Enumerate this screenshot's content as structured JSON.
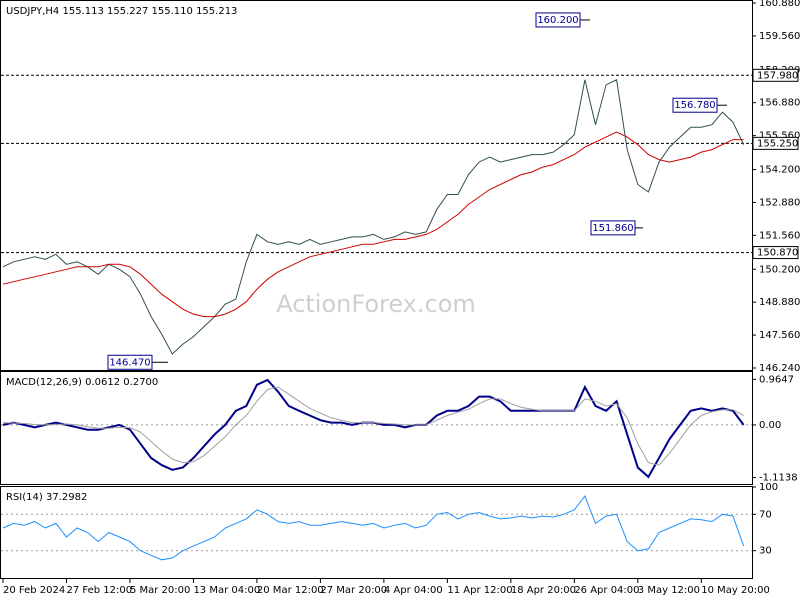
{
  "chart_data": [
    {
      "type": "line",
      "title": "USDJPY,H4 155.113 155.227 155.110 155.213",
      "watermark": "ActionForex.com",
      "categories": [
        "20 Feb 2024",
        null,
        null,
        null,
        null,
        null,
        "27 Feb 12:00",
        null,
        null,
        null,
        null,
        null,
        "5 Mar 20:00",
        null,
        null,
        null,
        null,
        null,
        "13 Mar 04:00",
        null,
        null,
        null,
        null,
        null,
        "20 Mar 12:00",
        null,
        null,
        null,
        null,
        null,
        "27 Mar 20:00",
        null,
        null,
        null,
        null,
        null,
        "4 Apr 04:00",
        null,
        null,
        null,
        null,
        null,
        "11 Apr 12:00",
        null,
        null,
        null,
        null,
        null,
        "18 Apr 20:00",
        null,
        null,
        null,
        null,
        null,
        "26 Apr 04:00",
        null,
        null,
        null,
        null,
        null,
        "3 May 12:00",
        null,
        null,
        null,
        null,
        null,
        "10 May 20:00",
        null,
        null,
        null,
        null
      ],
      "series": [
        {
          "color": "#2f4f4f",
          "values": [
            150.3,
            150.5,
            150.6,
            150.7,
            150.6,
            150.8,
            150.4,
            150.5,
            150.3,
            150.0,
            150.4,
            150.2,
            149.9,
            149.2,
            148.3,
            147.6,
            146.8,
            147.2,
            147.5,
            147.9,
            148.3,
            148.8,
            149.0,
            150.5,
            151.6,
            151.3,
            151.2,
            151.3,
            151.2,
            151.4,
            151.2,
            151.3,
            151.4,
            151.5,
            151.5,
            151.6,
            151.4,
            151.5,
            151.7,
            151.6,
            151.7,
            152.6,
            153.2,
            153.2,
            154.0,
            154.5,
            154.7,
            154.5,
            154.6,
            154.7,
            154.8,
            154.8,
            154.9,
            155.2,
            155.6,
            157.8,
            156.0,
            157.6,
            157.8,
            155.0,
            153.6,
            153.3,
            154.5,
            155.1,
            155.5,
            155.9,
            155.9,
            156.0,
            156.5,
            156.1,
            155.2
          ]
        },
        {
          "color": "#d00000",
          "values": [
            149.6,
            149.7,
            149.8,
            149.9,
            150.0,
            150.1,
            150.2,
            150.3,
            150.3,
            150.3,
            150.4,
            150.4,
            150.3,
            150.0,
            149.6,
            149.2,
            148.9,
            148.6,
            148.4,
            148.3,
            148.3,
            148.4,
            148.6,
            148.9,
            149.4,
            149.8,
            150.1,
            150.3,
            150.5,
            150.7,
            150.8,
            150.9,
            151.0,
            151.1,
            151.2,
            151.2,
            151.3,
            151.4,
            151.4,
            151.5,
            151.6,
            151.8,
            152.1,
            152.4,
            152.8,
            153.1,
            153.4,
            153.6,
            153.8,
            154.0,
            154.1,
            154.3,
            154.4,
            154.6,
            154.8,
            155.1,
            155.3,
            155.5,
            155.7,
            155.5,
            155.2,
            154.8,
            154.6,
            154.5,
            154.6,
            154.7,
            154.9,
            155.0,
            155.2,
            155.4,
            155.4
          ]
        }
      ],
      "ylim": [
        146.24,
        160.88
      ],
      "yticks": [
        {
          "value": 160.88,
          "label": "160.880"
        },
        {
          "value": 159.56,
          "label": "159.560"
        },
        {
          "value": 158.2,
          "label": "158.200"
        },
        {
          "value": 156.88,
          "label": "156.880"
        },
        {
          "value": 155.56,
          "label": "155.560"
        },
        {
          "value": 154.2,
          "label": "154.200"
        },
        {
          "value": 152.88,
          "label": "152.880"
        },
        {
          "value": 151.56,
          "label": "151.560"
        },
        {
          "value": 150.2,
          "label": "150.200"
        },
        {
          "value": 148.88,
          "label": "148.880"
        },
        {
          "value": 147.56,
          "label": "147.560"
        },
        {
          "value": 146.24,
          "label": "146.240"
        }
      ],
      "levels": [
        {
          "value": 157.98,
          "label": "157.980"
        },
        {
          "value": 155.25,
          "label": "155.250"
        },
        {
          "value": 150.87,
          "label": "150.870"
        }
      ],
      "annotations": [
        {
          "value": 160.2,
          "label": "160.200"
        },
        {
          "value": 156.78,
          "label": "156.780"
        },
        {
          "value": 151.86,
          "label": "151.860"
        },
        {
          "value": 146.47,
          "label": "146.470"
        }
      ]
    },
    {
      "type": "line",
      "title": "MACD(12,26,9) 0.0612 0.2700",
      "series": [
        {
          "color": "#00008b",
          "values": [
            0.0,
            0.05,
            0.0,
            -0.05,
            0.0,
            0.05,
            0.0,
            -0.05,
            -0.1,
            -0.1,
            -0.05,
            0.0,
            -0.1,
            -0.4,
            -0.7,
            -0.85,
            -0.95,
            -0.9,
            -0.7,
            -0.45,
            -0.2,
            0.0,
            0.3,
            0.4,
            0.85,
            0.95,
            0.7,
            0.4,
            0.3,
            0.2,
            0.1,
            0.05,
            0.05,
            0.0,
            0.05,
            0.05,
            0.0,
            0.0,
            -0.05,
            0.0,
            0.0,
            0.2,
            0.3,
            0.3,
            0.4,
            0.6,
            0.6,
            0.5,
            0.3,
            0.3,
            0.3,
            0.3,
            0.3,
            0.3,
            0.3,
            0.8,
            0.4,
            0.3,
            0.5,
            -0.2,
            -0.9,
            -1.1,
            -0.7,
            -0.3,
            0.0,
            0.3,
            0.35,
            0.3,
            0.35,
            0.3,
            0.0
          ]
        },
        {
          "color": "#a0a0a0",
          "values": [
            0.05,
            0.04,
            0.03,
            0.01,
            0.0,
            0.01,
            0.02,
            0.0,
            -0.04,
            -0.07,
            -0.07,
            -0.05,
            -0.06,
            -0.15,
            -0.35,
            -0.55,
            -0.72,
            -0.8,
            -0.78,
            -0.65,
            -0.45,
            -0.25,
            0.0,
            0.2,
            0.5,
            0.75,
            0.8,
            0.65,
            0.5,
            0.35,
            0.25,
            0.15,
            0.1,
            0.05,
            0.05,
            0.05,
            0.03,
            0.02,
            0.0,
            0.0,
            0.0,
            0.1,
            0.2,
            0.27,
            0.33,
            0.45,
            0.55,
            0.55,
            0.45,
            0.37,
            0.33,
            0.3,
            0.3,
            0.3,
            0.3,
            0.55,
            0.5,
            0.4,
            0.45,
            0.15,
            -0.4,
            -0.8,
            -0.85,
            -0.6,
            -0.3,
            0.0,
            0.2,
            0.28,
            0.32,
            0.32,
            0.2
          ]
        }
      ],
      "ylim": [
        -1.25,
        1.12
      ],
      "yticks": [
        0.9647,
        {
          "value": 0,
          "label": "0.00"
        },
        -1.1138
      ],
      "levels": [
        0
      ]
    },
    {
      "type": "line",
      "title": "RSI(14) 37.2982",
      "series": [
        {
          "color": "#1e90ff",
          "values": [
            55,
            60,
            58,
            62,
            55,
            60,
            45,
            55,
            50,
            40,
            50,
            45,
            40,
            30,
            25,
            20,
            22,
            30,
            35,
            40,
            45,
            55,
            60,
            65,
            75,
            70,
            62,
            60,
            62,
            58,
            58,
            60,
            62,
            60,
            58,
            60,
            55,
            58,
            60,
            55,
            58,
            70,
            72,
            65,
            70,
            72,
            68,
            65,
            66,
            68,
            66,
            68,
            67,
            70,
            75,
            90,
            60,
            68,
            70,
            40,
            30,
            32,
            50,
            55,
            60,
            65,
            64,
            62,
            70,
            68,
            35
          ]
        }
      ],
      "ylim": [
        0,
        100
      ],
      "yticks": [
        100,
        70,
        30
      ],
      "levels": [
        70,
        30
      ]
    }
  ]
}
